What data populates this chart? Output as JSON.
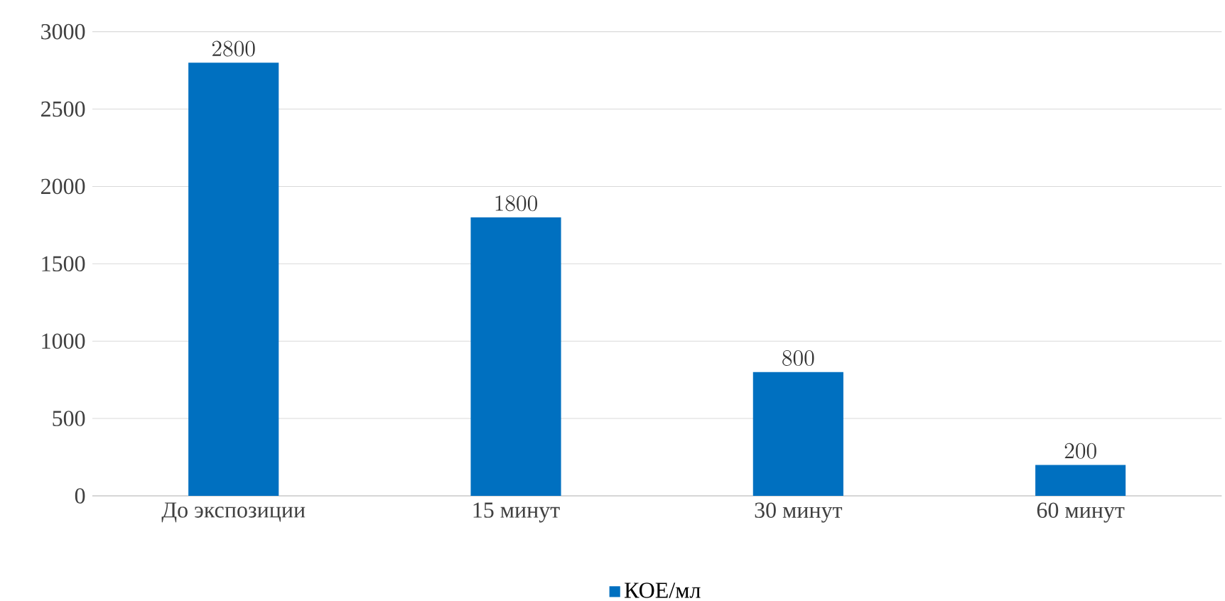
{
  "chart_data": {
    "type": "bar",
    "categories": [
      "До экспозиции",
      "15 минут",
      "30 минут",
      "60 минут"
    ],
    "series": [
      {
        "name": "КОЕ/мл",
        "color": "#0070c0",
        "values": [
          2800,
          1800,
          800,
          200
        ]
      }
    ],
    "ylim": [
      0,
      3000
    ],
    "yticks": [
      0,
      500,
      1000,
      1500,
      2000,
      2500,
      3000
    ],
    "grid": "y",
    "legend": "bottom",
    "data_labels": true
  }
}
